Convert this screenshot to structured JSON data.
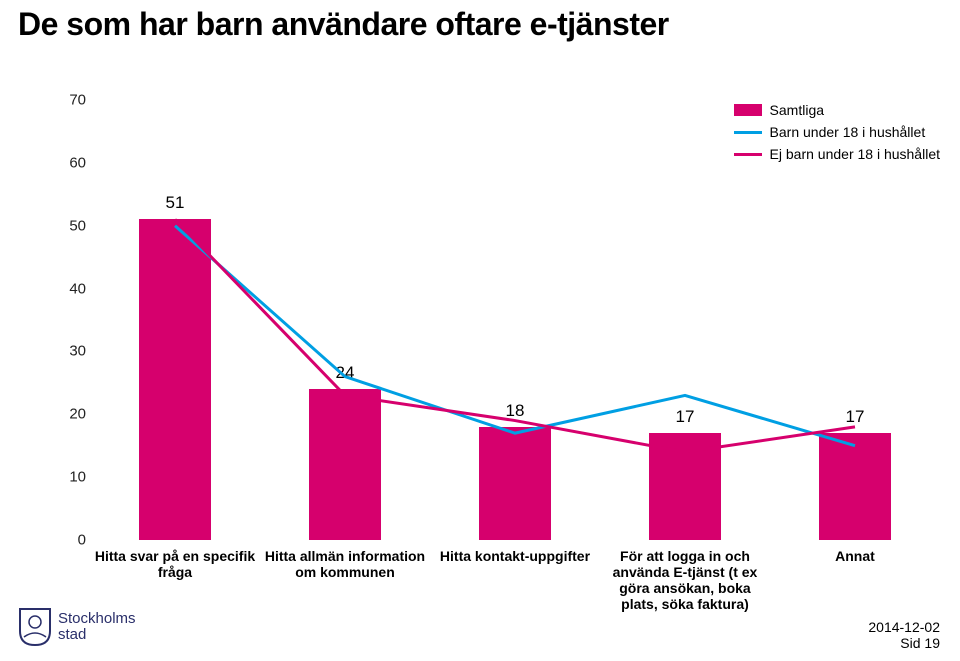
{
  "title": "De som har barn användare oftare e-tjänster",
  "chart": {
    "type": "bar+line",
    "ylim": [
      0,
      70
    ],
    "ytick_step": 10,
    "background_color": "#ffffff",
    "categories": [
      "Hitta svar på en specifik fråga",
      "Hitta allmän information om kommunen",
      "Hitta kontakt-uppgifter",
      "För att logga in och använda E-tjänst (t ex göra ansökan, boka plats, söka faktura)",
      "Annat"
    ],
    "bars": {
      "label": "Samtliga",
      "color": "#d6006d",
      "values": [
        51,
        24,
        18,
        17,
        17
      ],
      "width": 0.42
    },
    "lines": [
      {
        "label": "Barn under 18 i hushållet",
        "color": "#009fe3",
        "width": 3,
        "values": [
          50,
          26,
          17,
          23,
          15
        ]
      },
      {
        "label": "Ej barn under 18 i hushållet",
        "color": "#d6006d",
        "width": 3,
        "values": [
          51,
          23,
          19,
          14,
          18
        ]
      }
    ],
    "label_fontsize": 17,
    "xlabel_fontsize": 14,
    "ytick_fontsize": 15
  },
  "legend": {
    "items": [
      {
        "type": "bar",
        "label": "Samtliga",
        "color": "#d6006d"
      },
      {
        "type": "line",
        "label": "Barn under 18 i hushållet",
        "color": "#009fe3"
      },
      {
        "type": "line",
        "label": "Ej barn under 18 i hushållet",
        "color": "#d6006d"
      }
    ]
  },
  "footer": {
    "date": "2014-12-02",
    "page": "Sid 19"
  },
  "logo": {
    "line1": "Stockholms",
    "line2": "stad"
  }
}
